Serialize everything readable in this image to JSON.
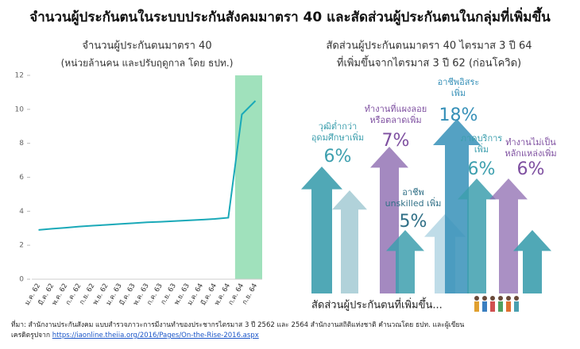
{
  "title": "จำนวนผู้ประกันตนในระบบประกันสังคมมาตรา 40 และสัดส่วนผู้ประกันตนในกลุ่มที่เพิ่มขึ้น",
  "chart_data": {
    "type": "line",
    "title": "จำนวนผู้ประกันตนมาตรา 40",
    "subtitle": "(หน่วยล้านคน และปรับฤดูกาล โดย ธปท.)",
    "categories": [
      "ม.ค. 62",
      "มี.ค. 62",
      "พ.ค. 62",
      "ก.ค. 62",
      "ก.ย. 62",
      "พ.ย. 62",
      "ม.ค. 63",
      "มี.ค. 63",
      "พ.ค. 63",
      "ก.ค. 63",
      "ก.ย. 63",
      "พ.ย. 63",
      "ม.ค. 64",
      "มี.ค. 64",
      "พ.ค. 64",
      "ก.ค. 64",
      "ก.ย. 64"
    ],
    "values": [
      2.9,
      2.97,
      3.03,
      3.1,
      3.15,
      3.2,
      3.25,
      3.3,
      3.35,
      3.38,
      3.42,
      3.46,
      3.5,
      3.55,
      3.62,
      9.7,
      10.5
    ],
    "color": "#1aa9b8",
    "highlight_color": "#8fdcb0",
    "ylim": [
      0,
      12
    ],
    "yticks": [
      0,
      2,
      4,
      6,
      8,
      10,
      12
    ],
    "grid": false
  },
  "infographic": {
    "title_lines": [
      "สัดส่วนผู้ประกันตนมาตรา 40 ไตรมาส 3 ปี 64",
      "ที่เพิ่มขึ้นจากไตรมาส 3 ปี 62 (ก่อนโควิด)"
    ],
    "items": [
      {
        "lines": [
          "วุฒิต่ำกว่า",
          "อุดมศึกษาเพิ่ม"
        ],
        "value": "6%",
        "color": "#3d9fae"
      },
      {
        "lines": [
          "ทำงานที่แผงลอย",
          "หรือตลาดเพิ่ม"
        ],
        "value": "7%",
        "color": "#7e4fa0"
      },
      {
        "lines": [
          "อาชีพอิสระ",
          "เพิ่ม"
        ],
        "value": "18%",
        "color": "#3690b8"
      },
      {
        "lines": [
          "ภาคบริการ",
          "เพิ่ม"
        ],
        "value": "6%",
        "color": "#3d9fae"
      },
      {
        "lines": [
          "ทำงานไม่เป็น",
          "หลักแหล่งเพิ่ม"
        ],
        "value": "6%",
        "color": "#7e4fa0"
      },
      {
        "lines": [
          "อาชีพ",
          "unskilled เพิ่ม"
        ],
        "value": "5%",
        "color": "#2f6f86"
      }
    ],
    "caption": "สัดส่วนผู้ประกันตนที่เพิ่มขึ้น..."
  },
  "footer": {
    "source": "ที่มา: สำนักงานประกันสังคม แบบสำรวจภาวะการมีงานทำของประชากรไตรมาส 3 ปี 2562 และ 2564 สำนักงานสถิติแห่งชาติ คำนวณโดย ธปท. และผู้เขียน",
    "credit": "เครดิตรูปจาก",
    "link": "https://iaonline.theiia.org/2016/Pages/On-the-Rise-2016.aspx"
  }
}
